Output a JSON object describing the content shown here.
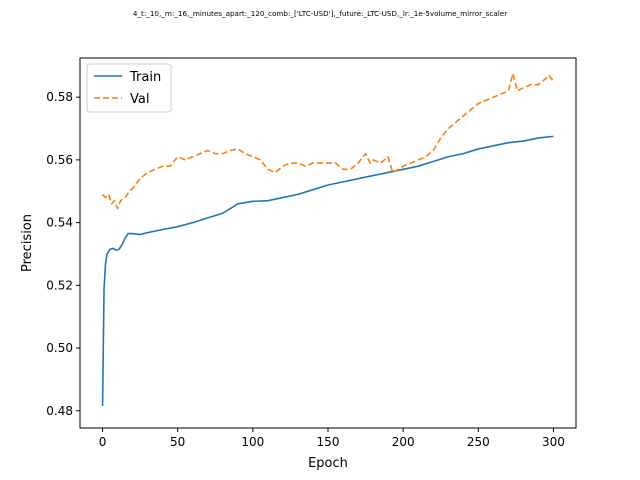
{
  "chart_data": {
    "type": "line",
    "title": "4_t:_10,_m:_16,_minutes_apart:_120_comb:_['LTC-USD'],_future:_LTC-USD,_lr:_1e-5volume_mirror_scaler",
    "xlabel": "Epoch",
    "ylabel": "Precision",
    "xlim": [
      -15,
      315
    ],
    "ylim": [
      0.4745,
      0.5925
    ],
    "xticks": [
      0,
      50,
      100,
      150,
      200,
      250,
      300
    ],
    "yticks": [
      0.48,
      0.5,
      0.52,
      0.54,
      0.56,
      0.58
    ],
    "ytick_labels": [
      "0.48",
      "0.50",
      "0.52",
      "0.54",
      "0.56",
      "0.58"
    ],
    "legend_position": "top-left",
    "grid": false,
    "series": [
      {
        "name": "Train",
        "color": "#1f77b4",
        "style": "solid",
        "points": [
          [
            0,
            0.4815
          ],
          [
            1,
            0.519
          ],
          [
            2,
            0.527
          ],
          [
            3,
            0.53
          ],
          [
            5,
            0.5315
          ],
          [
            7,
            0.5318
          ],
          [
            9,
            0.5312
          ],
          [
            11,
            0.5315
          ],
          [
            13,
            0.533
          ],
          [
            15,
            0.535
          ],
          [
            17,
            0.5365
          ],
          [
            20,
            0.5365
          ],
          [
            25,
            0.5362
          ],
          [
            30,
            0.5368
          ],
          [
            40,
            0.5378
          ],
          [
            50,
            0.5387
          ],
          [
            60,
            0.54
          ],
          [
            70,
            0.5415
          ],
          [
            80,
            0.543
          ],
          [
            85,
            0.5445
          ],
          [
            90,
            0.546
          ],
          [
            100,
            0.5468
          ],
          [
            110,
            0.547
          ],
          [
            120,
            0.548
          ],
          [
            130,
            0.549
          ],
          [
            140,
            0.5505
          ],
          [
            150,
            0.552
          ],
          [
            160,
            0.553
          ],
          [
            170,
            0.554
          ],
          [
            180,
            0.555
          ],
          [
            190,
            0.556
          ],
          [
            200,
            0.557
          ],
          [
            210,
            0.558
          ],
          [
            220,
            0.5595
          ],
          [
            230,
            0.561
          ],
          [
            240,
            0.562
          ],
          [
            250,
            0.5635
          ],
          [
            260,
            0.5645
          ],
          [
            270,
            0.5655
          ],
          [
            280,
            0.566
          ],
          [
            290,
            0.567
          ],
          [
            300,
            0.5675
          ]
        ]
      },
      {
        "name": "Val",
        "color": "#ff7f0e",
        "style": "dashed",
        "points": [
          [
            0,
            0.549
          ],
          [
            2,
            0.548
          ],
          [
            4,
            0.549
          ],
          [
            6,
            0.546
          ],
          [
            8,
            0.547
          ],
          [
            10,
            0.5445
          ],
          [
            12,
            0.547
          ],
          [
            15,
            0.548
          ],
          [
            18,
            0.55
          ],
          [
            20,
            0.551
          ],
          [
            25,
            0.554
          ],
          [
            30,
            0.556
          ],
          [
            35,
            0.557
          ],
          [
            40,
            0.558
          ],
          [
            45,
            0.558
          ],
          [
            50,
            0.561
          ],
          [
            55,
            0.56
          ],
          [
            60,
            0.561
          ],
          [
            65,
            0.562
          ],
          [
            70,
            0.563
          ],
          [
            75,
            0.562
          ],
          [
            80,
            0.562
          ],
          [
            85,
            0.563
          ],
          [
            90,
            0.5635
          ],
          [
            95,
            0.562
          ],
          [
            100,
            0.561
          ],
          [
            105,
            0.56
          ],
          [
            110,
            0.557
          ],
          [
            115,
            0.556
          ],
          [
            120,
            0.558
          ],
          [
            125,
            0.559
          ],
          [
            130,
            0.559
          ],
          [
            135,
            0.558
          ],
          [
            140,
            0.559
          ],
          [
            145,
            0.559
          ],
          [
            150,
            0.559
          ],
          [
            155,
            0.559
          ],
          [
            160,
            0.557
          ],
          [
            165,
            0.557
          ],
          [
            170,
            0.559
          ],
          [
            175,
            0.562
          ],
          [
            178,
            0.559
          ],
          [
            180,
            0.56
          ],
          [
            185,
            0.559
          ],
          [
            190,
            0.561
          ],
          [
            193,
            0.556
          ],
          [
            197,
            0.557
          ],
          [
            200,
            0.558
          ],
          [
            205,
            0.559
          ],
          [
            210,
            0.56
          ],
          [
            215,
            0.561
          ],
          [
            220,
            0.563
          ],
          [
            225,
            0.567
          ],
          [
            230,
            0.57
          ],
          [
            235,
            0.572
          ],
          [
            240,
            0.574
          ],
          [
            245,
            0.576
          ],
          [
            250,
            0.578
          ],
          [
            255,
            0.579
          ],
          [
            260,
            0.58
          ],
          [
            265,
            0.581
          ],
          [
            270,
            0.582
          ],
          [
            273,
            0.5875
          ],
          [
            276,
            0.582
          ],
          [
            280,
            0.583
          ],
          [
            285,
            0.584
          ],
          [
            290,
            0.584
          ],
          [
            295,
            0.586
          ],
          [
            297,
            0.587
          ],
          [
            300,
            0.585
          ]
        ]
      }
    ]
  }
}
